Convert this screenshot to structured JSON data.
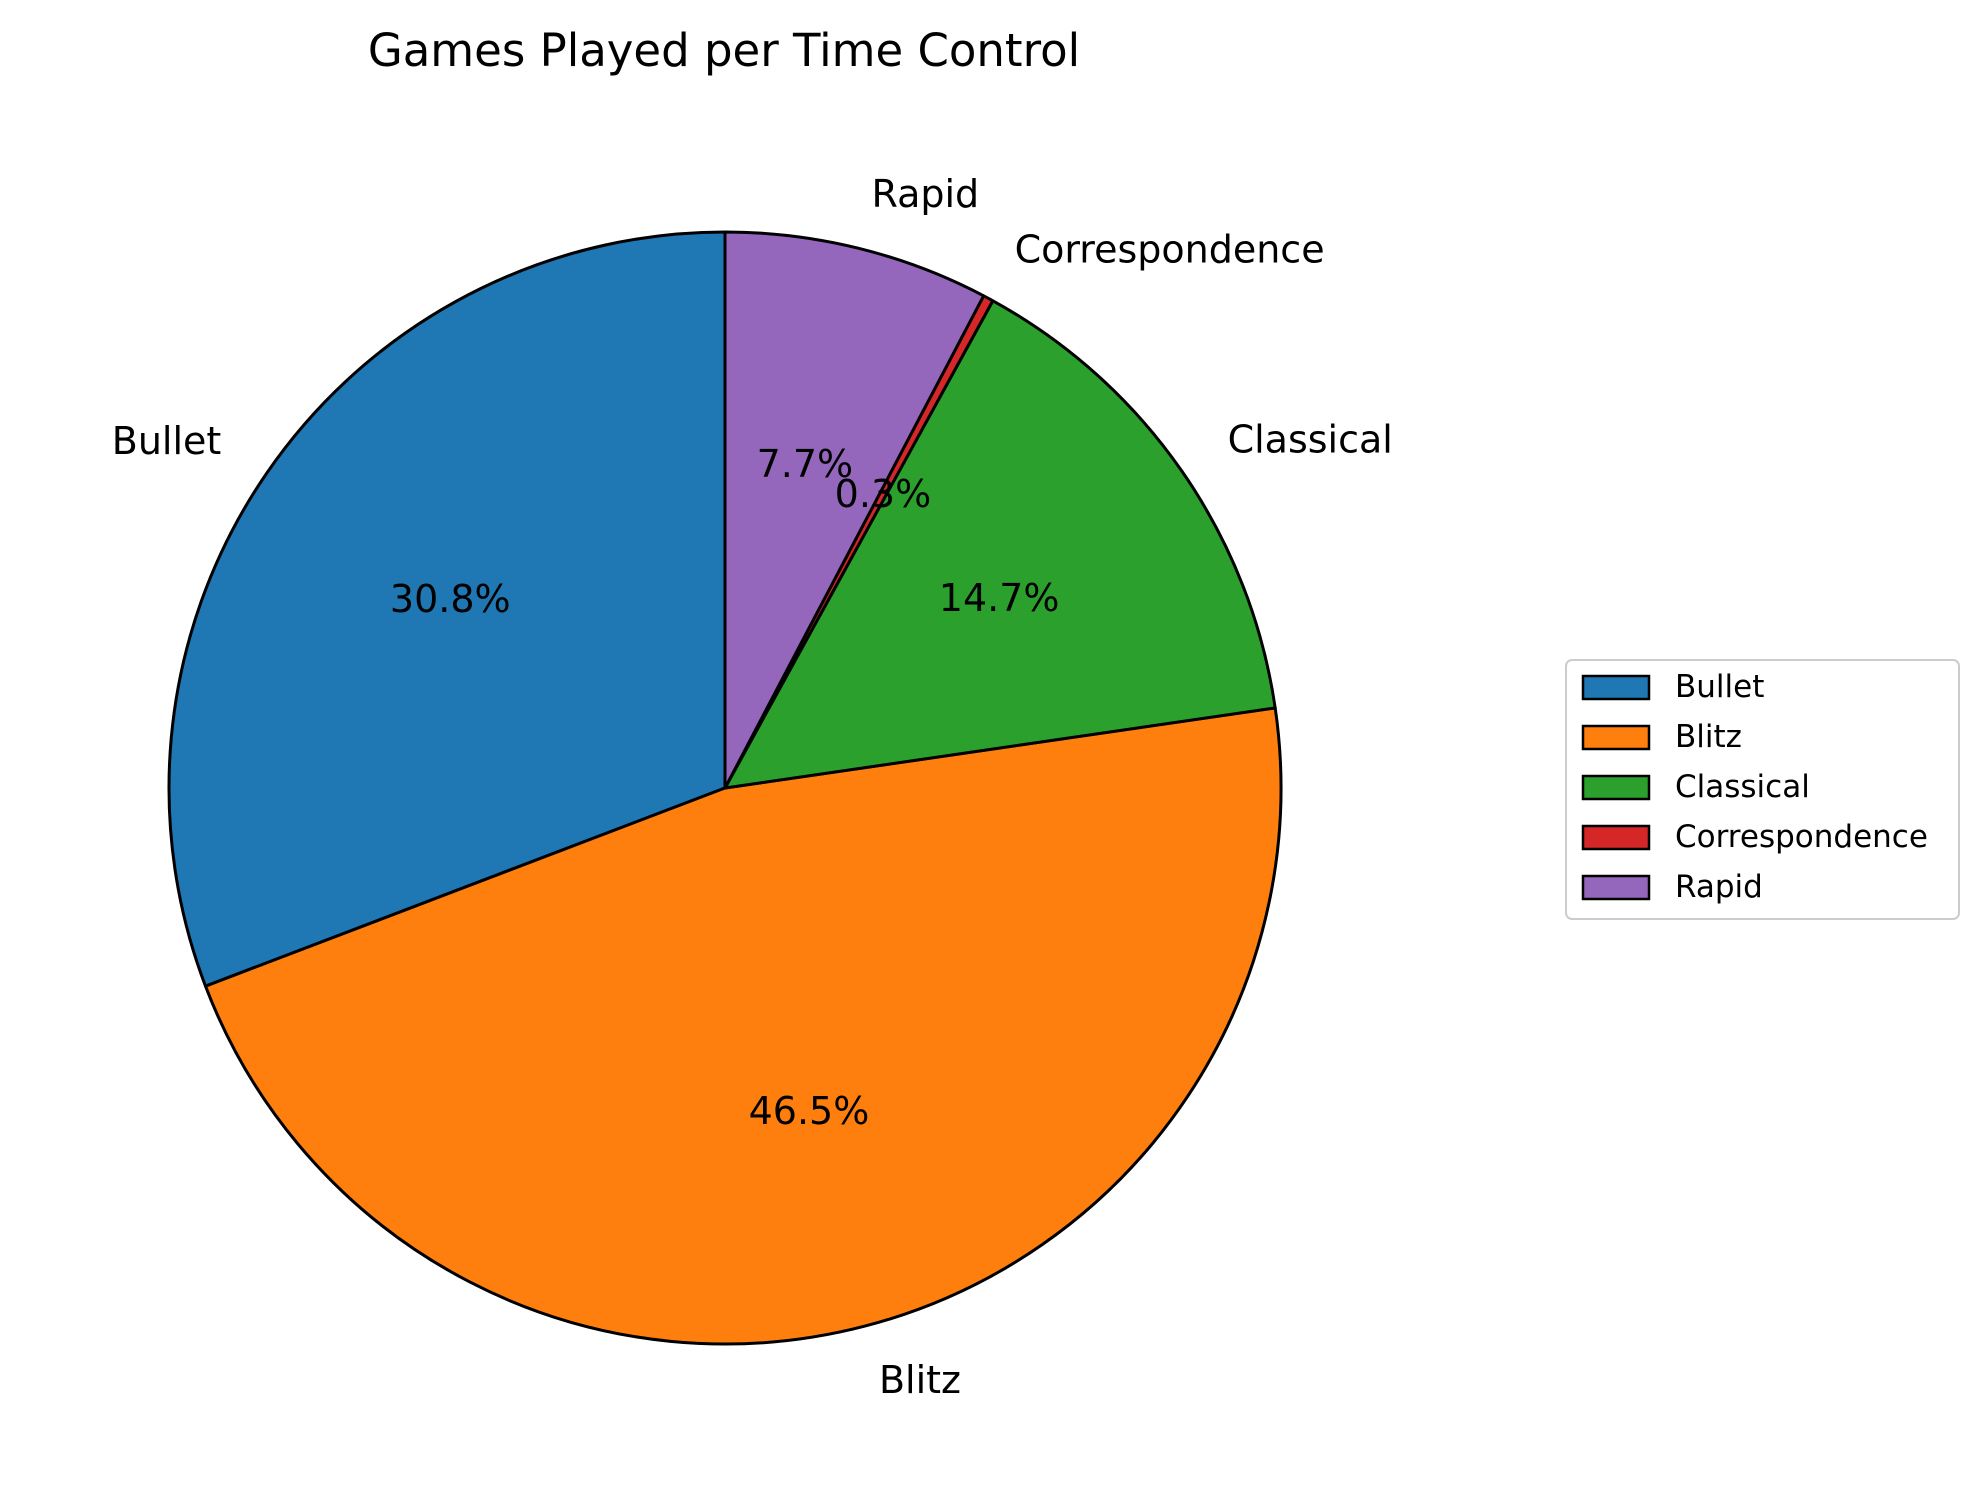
{
  "chart_data": {
    "type": "pie",
    "title": "Games Played per Time Control",
    "categories": [
      "Bullet",
      "Blitz",
      "Classical",
      "Correspondence",
      "Rapid"
    ],
    "values": [
      30.8,
      46.5,
      14.7,
      0.3,
      7.7
    ],
    "percent_labels": [
      "30.8%",
      "46.5%",
      "14.7%",
      "0.3%",
      "7.7%"
    ],
    "colors": [
      "#1f77b4",
      "#ff7f0e",
      "#2ca02c",
      "#d62728",
      "#9467bd"
    ],
    "start_angle_deg": 90,
    "direction": "counterclockwise",
    "edge_color": "#000000",
    "legend": {
      "placement": "center-right",
      "entries": [
        "Bullet",
        "Blitz",
        "Classical",
        "Correspondence",
        "Rapid"
      ]
    }
  }
}
